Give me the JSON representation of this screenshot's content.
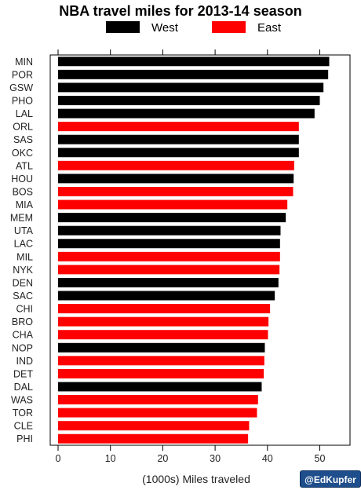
{
  "chart_data": {
    "type": "bar",
    "orientation": "horizontal",
    "title": "NBA travel miles for 2013-14 season",
    "xlabel": "(1000s) Miles traveled",
    "xlim": [
      0,
      55
    ],
    "xticks": [
      0,
      10,
      20,
      30,
      40,
      50
    ],
    "legend": {
      "position": "top",
      "entries": [
        {
          "name": "West",
          "color": "#000000"
        },
        {
          "name": "East",
          "color": "#ff0000"
        }
      ]
    },
    "grid": false,
    "categories": [
      "MIN",
      "POR",
      "GSW",
      "PHO",
      "LAL",
      "ORL",
      "SAS",
      "OKC",
      "ATL",
      "HOU",
      "BOS",
      "MIA",
      "MEM",
      "UTA",
      "LAC",
      "MIL",
      "NYK",
      "DEN",
      "SAC",
      "CHI",
      "BRO",
      "CHA",
      "NOP",
      "IND",
      "DET",
      "DAL",
      "WAS",
      "TOR",
      "CLE",
      "PHI"
    ],
    "values": [
      51.8,
      51.6,
      50.7,
      50.0,
      49.0,
      46.0,
      46.0,
      46.0,
      45.1,
      45.0,
      44.9,
      43.8,
      43.5,
      42.5,
      42.4,
      42.4,
      42.3,
      42.1,
      41.4,
      40.5,
      40.2,
      40.1,
      39.5,
      39.4,
      39.3,
      38.9,
      38.2,
      38.0,
      36.5,
      36.3
    ],
    "conference": [
      "West",
      "West",
      "West",
      "West",
      "West",
      "East",
      "West",
      "West",
      "East",
      "West",
      "East",
      "East",
      "West",
      "West",
      "West",
      "East",
      "East",
      "West",
      "West",
      "East",
      "East",
      "East",
      "West",
      "East",
      "East",
      "West",
      "East",
      "East",
      "East",
      "East"
    ]
  },
  "credit": "@EdKupfer"
}
